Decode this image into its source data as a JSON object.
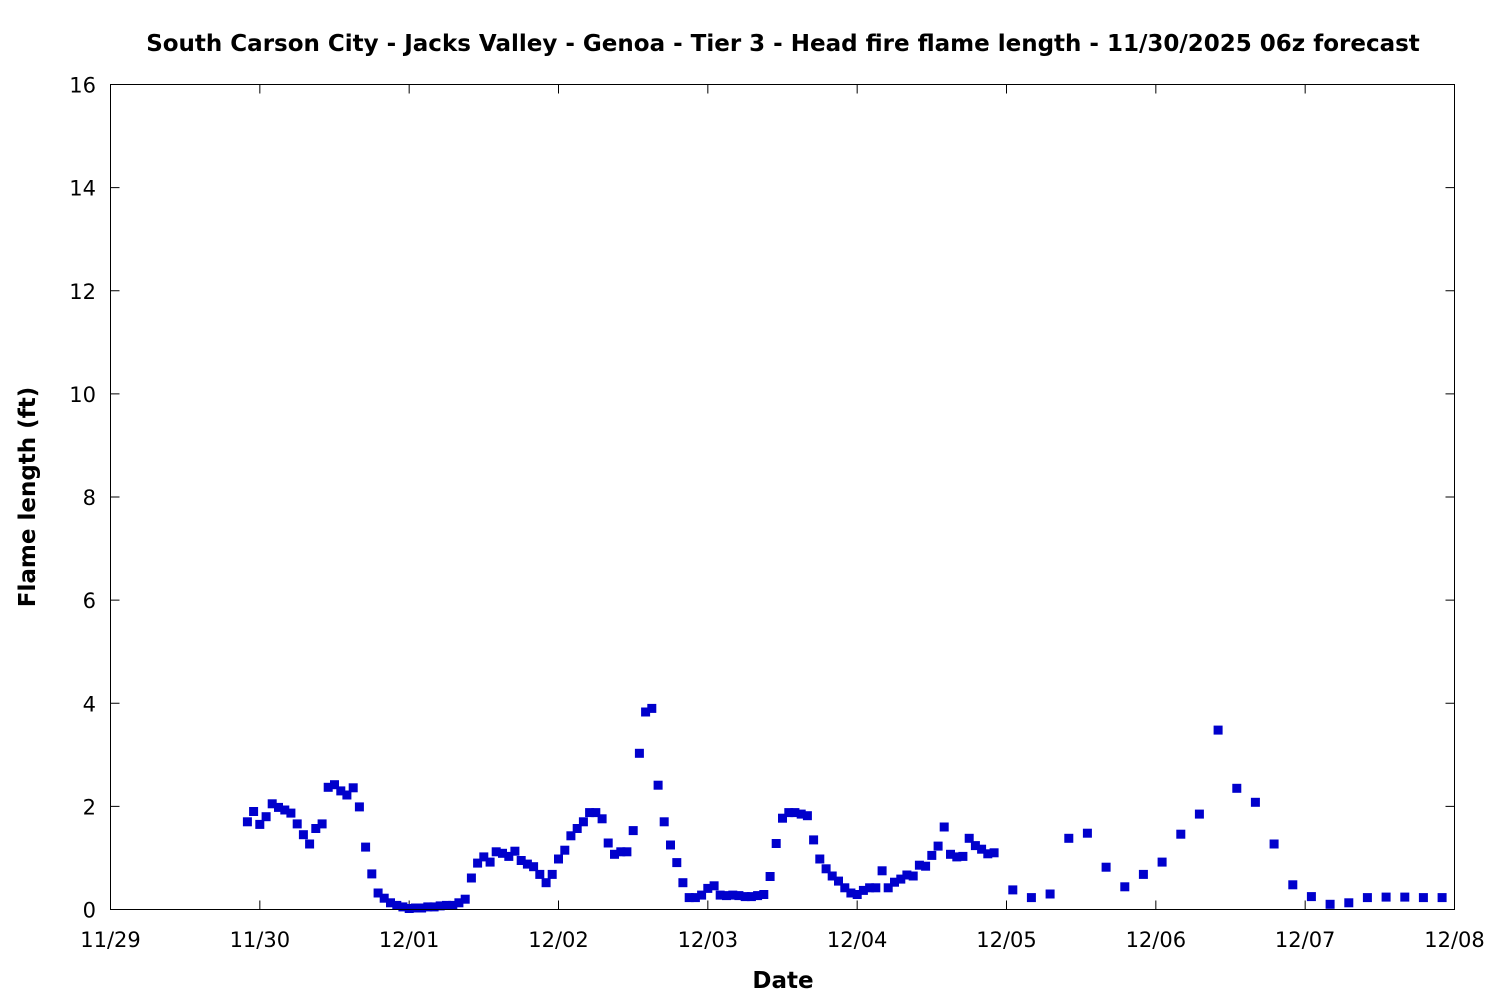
{
  "chart_data": {
    "type": "scatter",
    "title": "South Carson City - Jacks Valley - Genoa - Tier 3 - Head fire flame length - 11/30/2025 06z forecast",
    "xlabel": "Date",
    "ylabel": "Flame length (ft)",
    "xlim": [
      "11/29",
      "12/08"
    ],
    "ylim": [
      0,
      16
    ],
    "x_ticks": [
      "11/29",
      "11/30",
      "12/01",
      "12/02",
      "12/03",
      "12/04",
      "12/05",
      "12/06",
      "12/07",
      "12/08"
    ],
    "y_ticks": [
      0,
      2,
      4,
      6,
      8,
      10,
      12,
      14,
      16
    ],
    "grid": false,
    "marker_color": "#0000cc",
    "series": [
      {
        "x_unit": "days after 11/29 00z",
        "points": [
          [
            0.917,
            1.7
          ],
          [
            0.958,
            1.9
          ],
          [
            1.0,
            1.65
          ],
          [
            1.042,
            1.8
          ],
          [
            1.083,
            2.05
          ],
          [
            1.125,
            1.98
          ],
          [
            1.167,
            1.93
          ],
          [
            1.208,
            1.87
          ],
          [
            1.25,
            1.66
          ],
          [
            1.292,
            1.45
          ],
          [
            1.333,
            1.27
          ],
          [
            1.375,
            1.57
          ],
          [
            1.417,
            1.66
          ],
          [
            1.458,
            2.37
          ],
          [
            1.5,
            2.42
          ],
          [
            1.542,
            2.3
          ],
          [
            1.583,
            2.22
          ],
          [
            1.625,
            2.36
          ],
          [
            1.667,
            1.99
          ],
          [
            1.708,
            1.21
          ],
          [
            1.75,
            0.69
          ],
          [
            1.792,
            0.32
          ],
          [
            1.833,
            0.22
          ],
          [
            1.875,
            0.13
          ],
          [
            1.917,
            0.08
          ],
          [
            1.958,
            0.05
          ],
          [
            2.0,
            0.02
          ],
          [
            2.042,
            0.03
          ],
          [
            2.083,
            0.03
          ],
          [
            2.125,
            0.05
          ],
          [
            2.167,
            0.05
          ],
          [
            2.208,
            0.07
          ],
          [
            2.25,
            0.08
          ],
          [
            2.292,
            0.08
          ],
          [
            2.333,
            0.13
          ],
          [
            2.375,
            0.2
          ],
          [
            2.417,
            0.61
          ],
          [
            2.458,
            0.9
          ],
          [
            2.5,
            1.02
          ],
          [
            2.542,
            0.92
          ],
          [
            2.583,
            1.12
          ],
          [
            2.625,
            1.09
          ],
          [
            2.667,
            1.03
          ],
          [
            2.708,
            1.13
          ],
          [
            2.75,
            0.95
          ],
          [
            2.792,
            0.88
          ],
          [
            2.833,
            0.83
          ],
          [
            2.875,
            0.68
          ],
          [
            2.917,
            0.52
          ],
          [
            2.958,
            0.68
          ],
          [
            3.0,
            0.98
          ],
          [
            3.042,
            1.15
          ],
          [
            3.083,
            1.43
          ],
          [
            3.125,
            1.57
          ],
          [
            3.167,
            1.7
          ],
          [
            3.208,
            1.88
          ],
          [
            3.25,
            1.88
          ],
          [
            3.292,
            1.76
          ],
          [
            3.333,
            1.29
          ],
          [
            3.375,
            1.07
          ],
          [
            3.417,
            1.12
          ],
          [
            3.458,
            1.12
          ],
          [
            3.5,
            1.53
          ],
          [
            3.542,
            3.03
          ],
          [
            3.583,
            3.83
          ],
          [
            3.625,
            3.9
          ],
          [
            3.667,
            2.41
          ],
          [
            3.708,
            1.7
          ],
          [
            3.75,
            1.25
          ],
          [
            3.792,
            0.91
          ],
          [
            3.833,
            0.52
          ],
          [
            3.875,
            0.23
          ],
          [
            3.917,
            0.23
          ],
          [
            3.958,
            0.28
          ],
          [
            4.0,
            0.41
          ],
          [
            4.042,
            0.46
          ],
          [
            4.083,
            0.28
          ],
          [
            4.125,
            0.27
          ],
          [
            4.167,
            0.28
          ],
          [
            4.208,
            0.27
          ],
          [
            4.25,
            0.25
          ],
          [
            4.292,
            0.25
          ],
          [
            4.333,
            0.27
          ],
          [
            4.375,
            0.29
          ],
          [
            4.417,
            0.64
          ],
          [
            4.458,
            1.28
          ],
          [
            4.5,
            1.77
          ],
          [
            4.542,
            1.88
          ],
          [
            4.583,
            1.88
          ],
          [
            4.625,
            1.85
          ],
          [
            4.667,
            1.82
          ],
          [
            4.708,
            1.35
          ],
          [
            4.75,
            0.98
          ],
          [
            4.792,
            0.79
          ],
          [
            4.833,
            0.65
          ],
          [
            4.875,
            0.55
          ],
          [
            4.917,
            0.42
          ],
          [
            4.958,
            0.32
          ],
          [
            5.0,
            0.29
          ],
          [
            5.042,
            0.37
          ],
          [
            5.083,
            0.42
          ],
          [
            5.125,
            0.42
          ],
          [
            5.167,
            0.75
          ],
          [
            5.208,
            0.42
          ],
          [
            5.25,
            0.53
          ],
          [
            5.292,
            0.59
          ],
          [
            5.333,
            0.67
          ],
          [
            5.375,
            0.65
          ],
          [
            5.417,
            0.86
          ],
          [
            5.458,
            0.84
          ],
          [
            5.5,
            1.05
          ],
          [
            5.542,
            1.23
          ],
          [
            5.583,
            1.6
          ],
          [
            5.625,
            1.07
          ],
          [
            5.667,
            1.02
          ],
          [
            5.708,
            1.03
          ],
          [
            5.75,
            1.38
          ],
          [
            5.792,
            1.24
          ],
          [
            5.833,
            1.17
          ],
          [
            5.875,
            1.08
          ],
          [
            5.917,
            1.1
          ],
          [
            6.042,
            0.38
          ],
          [
            6.167,
            0.23
          ],
          [
            6.292,
            0.3
          ],
          [
            6.417,
            1.38
          ],
          [
            6.542,
            1.48
          ],
          [
            6.667,
            0.82
          ],
          [
            6.792,
            0.44
          ],
          [
            6.917,
            0.68
          ],
          [
            7.042,
            0.92
          ],
          [
            7.167,
            1.46
          ],
          [
            7.292,
            1.85
          ],
          [
            7.417,
            3.48
          ],
          [
            7.542,
            2.35
          ],
          [
            7.667,
            2.08
          ],
          [
            7.792,
            1.27
          ],
          [
            7.917,
            0.48
          ],
          [
            8.042,
            0.25
          ],
          [
            8.167,
            0.1
          ],
          [
            8.292,
            0.13
          ],
          [
            8.417,
            0.23
          ],
          [
            8.542,
            0.24
          ],
          [
            8.667,
            0.24
          ],
          [
            8.792,
            0.23
          ],
          [
            8.917,
            0.23
          ]
        ]
      }
    ]
  }
}
